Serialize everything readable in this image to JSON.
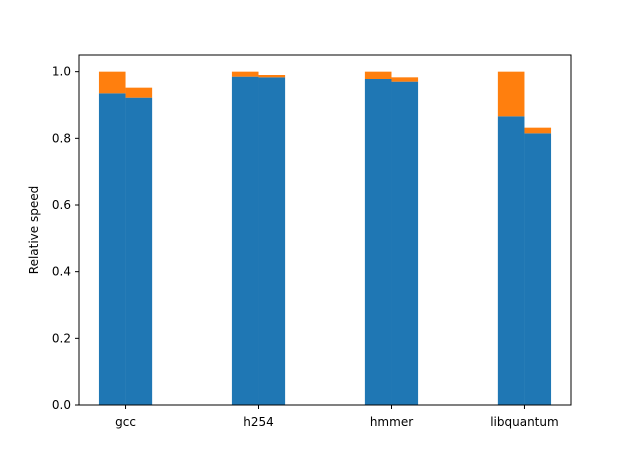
{
  "chart_data": {
    "type": "bar",
    "stacked": true,
    "bars_per_category": 2,
    "categories": [
      "gcc",
      "h254",
      "hmmer",
      "libquantum"
    ],
    "ylabel": "Relative speed",
    "xlabel": "",
    "title": "",
    "ylim": [
      0,
      1.05
    ],
    "yticks": [
      "0.0",
      "0.2",
      "0.4",
      "0.6",
      "0.8",
      "1.0"
    ],
    "grid": false,
    "legend": "none",
    "colors": {
      "base": "#1f77b4",
      "top": "#ff7f0e"
    },
    "series": [
      {
        "values": [
          [
            0.935,
            0.922
          ],
          [
            0.985,
            0.983
          ],
          [
            0.978,
            0.97
          ],
          [
            0.866,
            0.815
          ]
        ]
      },
      {
        "values": [
          [
            0.065,
            0.03
          ],
          [
            0.015,
            0.007
          ],
          [
            0.022,
            0.013
          ],
          [
            0.134,
            0.017
          ]
        ]
      }
    ]
  }
}
